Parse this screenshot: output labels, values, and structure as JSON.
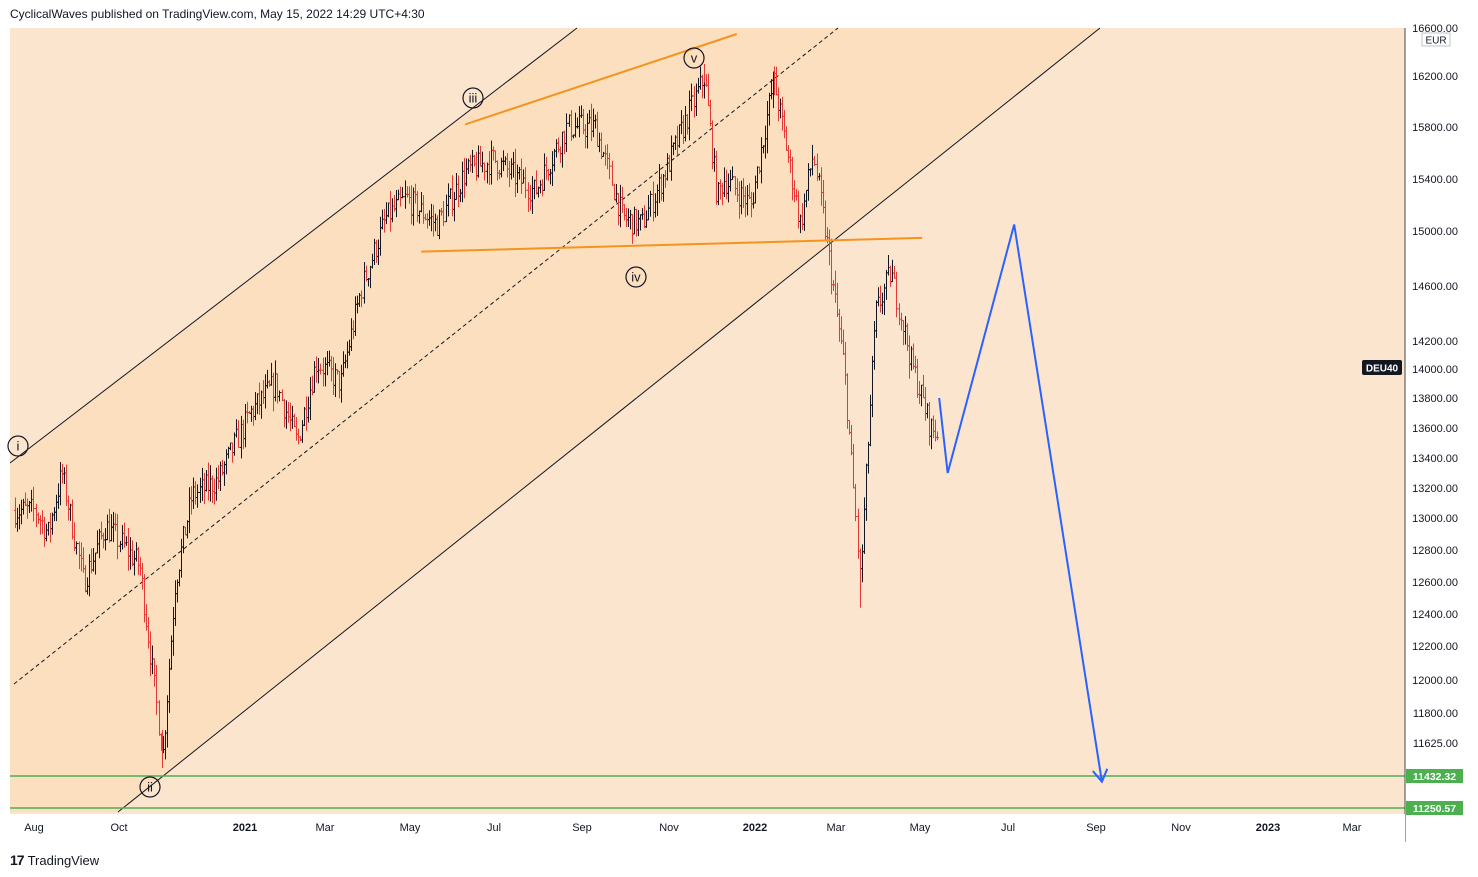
{
  "header": {
    "published_text": "CyclicalWaves published on TradingView.com, May 15, 2022 14:29 UTC+4:30"
  },
  "footer": {
    "brand": "TradingView",
    "logo_text": "17"
  },
  "chart_data": {
    "type": "candlestick",
    "symbol": "DEU40",
    "currency": "EUR",
    "price_scale": {
      "ticks": [
        "16600.00",
        "16200.00",
        "15800.00",
        "15400.00",
        "15000.00",
        "14600.00",
        "14200.00",
        "14000.00",
        "13800.00",
        "13600.00",
        "13400.00",
        "13200.00",
        "13000.00",
        "12800.00",
        "12600.00",
        "12400.00",
        "12200.00",
        "12000.00",
        "11800.00",
        "11625.00"
      ]
    },
    "time_axis": {
      "labels": [
        "Aug",
        "Oct",
        "2021",
        "Mar",
        "May",
        "Jul",
        "Sep",
        "Nov",
        "2022",
        "Mar",
        "May",
        "Jul",
        "Sep",
        "Nov",
        "2023",
        "Mar"
      ]
    },
    "horizontal_levels": [
      {
        "label": "11432.32",
        "value": 11432.32,
        "color": "#4caf50"
      },
      {
        "label": "11250.57",
        "value": 11250.57,
        "color": "#4caf50"
      }
    ],
    "wave_labels": [
      "i",
      "ii",
      "iii",
      "iv",
      "v"
    ],
    "colors": {
      "up": "#131722",
      "down": "#e53935",
      "channel": "#fbe1c2",
      "background": "#fbe5cf",
      "trendline": "#f5931f",
      "projection": "#2962ff"
    },
    "projection_path": [
      [
        "2022-05-02",
        13800
      ],
      [
        "2022-05-08",
        13300
      ],
      [
        "2022-06-24",
        15050
      ],
      [
        "2022-08-25",
        11400
      ]
    ],
    "wedge_upper": [
      [
        "2021-06-01",
        15820
      ],
      [
        "2021-12-10",
        16550
      ]
    ],
    "wedge_lower": [
      [
        "2021-05-01",
        14850
      ],
      [
        "2022-04-20",
        14950
      ]
    ]
  }
}
